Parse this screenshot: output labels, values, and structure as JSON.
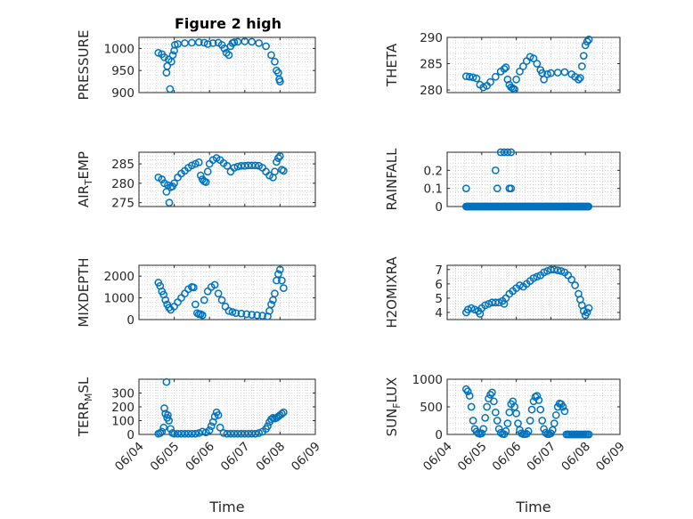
{
  "figure": {
    "title": "Figure 2 high",
    "accent_color": "#0072BD"
  },
  "chart_data": [
    {
      "type": "scatter",
      "panel": 1,
      "title": "Figure 2 high",
      "ylabel": "PRESSURE",
      "xlabel": "",
      "xlim": [
        0,
        5
      ],
      "ylim": [
        900,
        1025
      ],
      "yticks": [
        900,
        950,
        1000
      ],
      "xticks": [
        0,
        1,
        2,
        3,
        4,
        5
      ],
      "xticklabels": [
        "06/04",
        "06/05",
        "06/06",
        "06/07",
        "06/08",
        "06/09"
      ],
      "show_xticklabels": false,
      "grid": true,
      "segments": [
        {
          "t": [
            0.55,
            0.65,
            0.72,
            0.78,
            0.8,
            0.84,
            0.88,
            0.92,
            0.96,
            1.0
          ],
          "v": [
            990,
            987,
            980,
            945,
            960,
            975,
            908,
            970,
            985,
            995
          ]
        },
        {
          "t": [
            1.02,
            1.1,
            1.3,
            1.5,
            1.7,
            1.85,
            1.95,
            2.1,
            2.25,
            2.35,
            2.42,
            2.48,
            2.55,
            2.6,
            2.65,
            2.7,
            2.8,
            3.0,
            3.2,
            3.4,
            3.6,
            3.75,
            3.85,
            3.9
          ],
          "v": [
            1008,
            1010,
            1012,
            1013,
            1014,
            1013,
            1010,
            1012,
            1013,
            1008,
            1000,
            990,
            985,
            1005,
            1012,
            1014,
            1015,
            1016,
            1015,
            1012,
            1005,
            985,
            970,
            950
          ]
        },
        {
          "t": [
            3.95,
            3.98,
            4.0
          ],
          "v": [
            945,
            930,
            925
          ]
        }
      ]
    },
    {
      "type": "scatter",
      "panel": 2,
      "ylabel": "THETA",
      "xlabel": "",
      "xlim": [
        0,
        5
      ],
      "ylim": [
        279.5,
        290
      ],
      "yticks": [
        280,
        285,
        290
      ],
      "xticks": [
        0,
        1,
        2,
        3,
        4,
        5
      ],
      "xticklabels": [
        "06/04",
        "06/05",
        "06/06",
        "06/07",
        "06/08",
        "06/09"
      ],
      "show_xticklabels": false,
      "grid": true,
      "segments": [
        {
          "t": [
            0.55,
            0.65,
            0.75,
            0.85,
            0.95,
            1.05,
            1.15,
            1.25,
            1.4,
            1.55,
            1.65,
            1.7
          ],
          "v": [
            282.6,
            282.5,
            282.4,
            282.2,
            281.0,
            280.5,
            280.8,
            281.5,
            282.5,
            283.5,
            284.0,
            284.3
          ]
        },
        {
          "t": [
            1.75,
            1.8,
            1.85,
            1.9,
            1.95,
            2.0,
            2.1,
            2.2,
            2.3,
            2.4,
            2.5,
            2.6,
            2.7,
            2.75,
            2.8,
            2.9,
            3.0,
            3.2,
            3.4,
            3.6,
            3.7,
            3.8,
            3.85,
            3.9,
            3.95,
            4.0,
            4.05,
            4.1
          ],
          "v": [
            282.0,
            281.0,
            280.5,
            280.3,
            280.1,
            282.0,
            283.5,
            284.5,
            285.5,
            286.3,
            286.0,
            285.0,
            283.8,
            283.2,
            282.0,
            283.0,
            283.2,
            283.3,
            283.4,
            283.0,
            282.5,
            282.0,
            282.3,
            284.5,
            286.5,
            288.5,
            289.2,
            289.6
          ]
        }
      ]
    },
    {
      "type": "scatter",
      "panel": 3,
      "ylabel": "AIR_TEMP",
      "xlabel": "",
      "xlim": [
        0,
        5
      ],
      "ylim": [
        274,
        288
      ],
      "yticks": [
        275,
        280,
        285
      ],
      "xticks": [
        0,
        1,
        2,
        3,
        4,
        5
      ],
      "xticklabels": [
        "06/04",
        "06/05",
        "06/06",
        "06/07",
        "06/08",
        "06/09"
      ],
      "show_xticklabels": false,
      "grid": true,
      "segments": [
        {
          "t": [
            0.55,
            0.65,
            0.72,
            0.78,
            0.82,
            0.86,
            0.9,
            0.95,
            1.0,
            1.1,
            1.2,
            1.3,
            1.4,
            1.5,
            1.6,
            1.7,
            1.75,
            1.8,
            1.85,
            1.9,
            1.95,
            2.0,
            2.1,
            2.2,
            2.3,
            2.4,
            2.5,
            2.6,
            2.7,
            2.8,
            2.9,
            3.0,
            3.1,
            3.2,
            3.3,
            3.4,
            3.5,
            3.6,
            3.7,
            3.8,
            3.85,
            3.9,
            3.95,
            4.0,
            4.05,
            4.1
          ],
          "v": [
            281.5,
            281.0,
            280.0,
            277.8,
            279.5,
            275.0,
            279.0,
            279.2,
            280.0,
            281.5,
            282.5,
            283.2,
            284.0,
            284.6,
            285.0,
            285.4,
            282.0,
            281.0,
            280.5,
            280.3,
            283.0,
            285.0,
            286.0,
            286.5,
            286.0,
            285.2,
            284.5,
            283.0,
            284.0,
            284.3,
            284.5,
            284.5,
            284.6,
            284.6,
            284.6,
            284.5,
            284.0,
            283.0,
            282.0,
            281.5,
            283.0,
            285.5,
            286.5,
            287.0,
            283.5,
            283.2
          ]
        }
      ]
    },
    {
      "type": "scatter",
      "panel": 4,
      "ylabel": "RAINFALL",
      "xlabel": "",
      "xlim": [
        0,
        5
      ],
      "ylim": [
        0,
        0.3
      ],
      "yticks": [
        0,
        0.1,
        0.2
      ],
      "xticks": [
        0,
        1,
        2,
        3,
        4,
        5
      ],
      "xticklabels": [
        "06/04",
        "06/05",
        "06/06",
        "06/07",
        "06/08",
        "06/09"
      ],
      "show_xticklabels": false,
      "grid": true,
      "zero_run": {
        "t_start": 0.55,
        "t_end": 4.1,
        "step": 0.03,
        "v": 0
      },
      "segments": [
        {
          "t": [
            0.55,
            1.4,
            1.45,
            1.8,
            1.85,
            1.55,
            1.65,
            1.75,
            1.85
          ],
          "v": [
            0.1,
            0.2,
            0.1,
            0.1,
            0.1,
            0.3,
            0.3,
            0.3,
            0.3
          ]
        }
      ]
    },
    {
      "type": "scatter",
      "panel": 5,
      "ylabel": "MIXDEPTH",
      "xlabel": "",
      "xlim": [
        0,
        5
      ],
      "ylim": [
        0,
        2500
      ],
      "yticks": [
        0,
        1000,
        2000
      ],
      "xticks": [
        0,
        1,
        2,
        3,
        4,
        5
      ],
      "xticklabels": [
        "06/04",
        "06/05",
        "06/06",
        "06/07",
        "06/08",
        "06/09"
      ],
      "show_xticklabels": false,
      "grid": true,
      "segments": [
        {
          "t": [
            0.55,
            0.6,
            0.65,
            0.7,
            0.75,
            0.8,
            0.85,
            0.9,
            1.0,
            1.1,
            1.2,
            1.3,
            1.4,
            1.5,
            1.55,
            1.6,
            1.65,
            1.7,
            1.75,
            1.8,
            1.85,
            1.95,
            2.05,
            2.15,
            2.25,
            2.35,
            2.45,
            2.55,
            2.65,
            2.75,
            2.9,
            3.05,
            3.2,
            3.35,
            3.5,
            3.65,
            3.7,
            3.75,
            3.8,
            3.85,
            3.9,
            3.95,
            4.0,
            4.05,
            4.1
          ],
          "v": [
            1700,
            1550,
            1300,
            1150,
            900,
            700,
            550,
            450,
            600,
            800,
            1000,
            1200,
            1400,
            1500,
            1480,
            700,
            300,
            250,
            250,
            200,
            900,
            1300,
            1500,
            1600,
            1200,
            900,
            600,
            400,
            350,
            300,
            280,
            250,
            220,
            200,
            180,
            150,
            400,
            700,
            900,
            1200,
            1800,
            2100,
            2300,
            1800,
            1450
          ]
        }
      ]
    },
    {
      "type": "scatter",
      "panel": 6,
      "ylabel": "H2OMIXRA",
      "xlabel": "",
      "xlim": [
        0,
        5
      ],
      "ylim": [
        3.5,
        7.3
      ],
      "yticks": [
        4,
        5,
        6,
        7
      ],
      "xticks": [
        0,
        1,
        2,
        3,
        4,
        5
      ],
      "xticklabels": [
        "06/04",
        "06/05",
        "06/06",
        "06/07",
        "06/08",
        "06/09"
      ],
      "show_xticklabels": false,
      "grid": true,
      "segments": [
        {
          "t": [
            0.55,
            0.6,
            0.7,
            0.8,
            0.9,
            0.95,
            1.0,
            1.1,
            1.2,
            1.3,
            1.4,
            1.5,
            1.6,
            1.65,
            1.7,
            1.8,
            1.9,
            2.0,
            2.1,
            2.2,
            2.3,
            2.4,
            2.5,
            2.6,
            2.7,
            2.8,
            2.9,
            3.0,
            3.1,
            3.2,
            3.3,
            3.4,
            3.5,
            3.6,
            3.7,
            3.8,
            3.85,
            3.9,
            3.95,
            4.0,
            4.05,
            4.1
          ],
          "v": [
            4.0,
            4.2,
            4.3,
            4.2,
            4.1,
            3.9,
            4.3,
            4.5,
            4.6,
            4.7,
            4.7,
            4.7,
            4.8,
            4.6,
            5.0,
            5.3,
            5.5,
            5.7,
            5.9,
            5.8,
            6.0,
            6.2,
            6.4,
            6.5,
            6.6,
            6.8,
            6.9,
            7.0,
            7.0,
            6.95,
            6.9,
            6.8,
            6.6,
            6.3,
            5.9,
            5.3,
            4.9,
            4.5,
            4.1,
            3.8,
            4.0,
            4.3
          ]
        }
      ]
    },
    {
      "type": "scatter",
      "panel": 7,
      "ylabel": "TERR_MSL",
      "xlabel": "Time",
      "xlim": [
        0,
        5
      ],
      "ylim": [
        0,
        400
      ],
      "yticks": [
        0,
        100,
        200,
        300
      ],
      "xticks": [
        0,
        1,
        2,
        3,
        4,
        5
      ],
      "xticklabels": [
        "06/04",
        "06/05",
        "06/06",
        "06/07",
        "06/08",
        "06/09"
      ],
      "show_xticklabels": true,
      "grid": true,
      "segments": [
        {
          "t": [
            0.55,
            0.6,
            0.65,
            0.7,
            0.72,
            0.75,
            0.78,
            0.8,
            0.82,
            0.85,
            0.9,
            0.95,
            1.0,
            1.1,
            1.2,
            1.3,
            1.4,
            1.5,
            1.6,
            1.7,
            1.8,
            1.9,
            2.0,
            2.05,
            2.1,
            2.15,
            2.2,
            2.25,
            2.3,
            2.4,
            2.5,
            2.6,
            2.7,
            2.8,
            2.9,
            3.0,
            3.1,
            3.2,
            3.3,
            3.4,
            3.5,
            3.6,
            3.65,
            3.7,
            3.75,
            3.8,
            3.85,
            3.9,
            3.95,
            4.0,
            4.05,
            4.1
          ],
          "v": [
            5,
            10,
            20,
            50,
            190,
            150,
            380,
            120,
            140,
            100,
            40,
            10,
            5,
            5,
            5,
            5,
            5,
            5,
            5,
            10,
            20,
            15,
            30,
            60,
            90,
            130,
            160,
            140,
            50,
            10,
            5,
            5,
            5,
            5,
            5,
            5,
            5,
            5,
            5,
            10,
            20,
            40,
            60,
            90,
            110,
            120,
            115,
            120,
            130,
            140,
            150,
            160
          ]
        }
      ]
    },
    {
      "type": "scatter",
      "panel": 8,
      "ylabel": "SUN_FLUX",
      "xlabel": "Time",
      "xlim": [
        0,
        5
      ],
      "ylim": [
        0,
        1000
      ],
      "yticks": [
        0,
        500,
        1000
      ],
      "xticks": [
        0,
        1,
        2,
        3,
        4,
        5
      ],
      "xticklabels": [
        "06/04",
        "06/05",
        "06/06",
        "06/07",
        "06/08",
        "06/09"
      ],
      "show_xticklabels": true,
      "grid": true,
      "segments": [
        {
          "t": [
            0.55,
            0.6,
            0.65,
            0.7,
            0.75,
            0.8,
            0.85,
            0.9,
            0.95,
            1.0,
            1.05,
            1.1,
            1.15,
            1.2,
            1.25,
            1.3,
            1.35,
            1.4,
            1.45,
            1.5,
            1.55,
            1.6,
            1.65,
            1.7,
            1.75,
            1.8,
            1.85,
            1.9,
            1.95,
            2.0,
            2.05,
            2.1,
            2.15,
            2.2,
            2.25,
            2.3,
            2.35,
            2.4,
            2.45,
            2.5,
            2.55,
            2.6,
            2.65,
            2.7,
            2.75,
            2.8,
            2.85,
            2.9,
            2.95,
            3.0,
            3.05,
            3.1,
            3.15,
            3.2,
            3.25,
            3.3,
            3.35,
            3.4,
            3.45,
            3.5,
            3.55,
            3.6,
            3.65,
            3.7,
            3.75,
            3.8,
            3.85,
            3.9,
            3.95,
            4.0,
            4.05,
            4.1
          ],
          "v": [
            820,
            780,
            700,
            500,
            250,
            100,
            50,
            20,
            10,
            20,
            100,
            300,
            500,
            650,
            720,
            760,
            600,
            400,
            250,
            100,
            30,
            10,
            5,
            60,
            200,
            400,
            550,
            600,
            500,
            380,
            200,
            80,
            20,
            5,
            5,
            10,
            60,
            250,
            450,
            600,
            680,
            700,
            620,
            450,
            250,
            100,
            30,
            5,
            5,
            20,
            80,
            200,
            350,
            500,
            560,
            550,
            500,
            420,
            0,
            0,
            0,
            0,
            0,
            0,
            0,
            0,
            0,
            0,
            0,
            0,
            0,
            0
          ]
        }
      ]
    }
  ]
}
